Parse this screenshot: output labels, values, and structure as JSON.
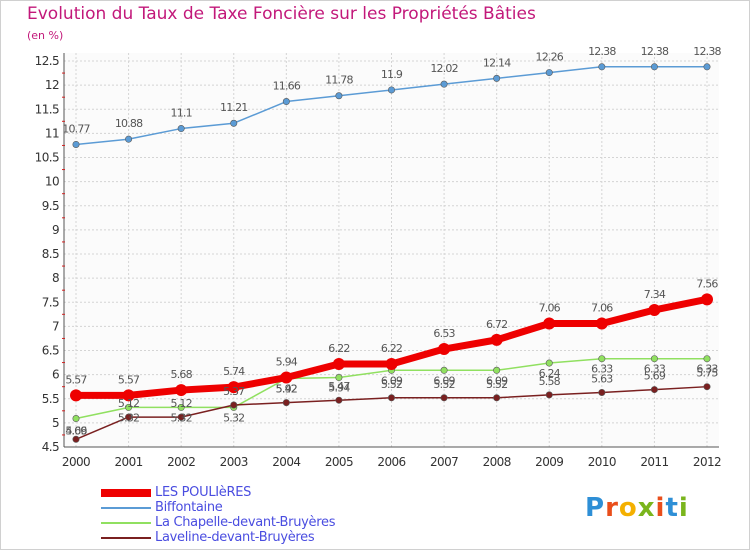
{
  "header": {
    "title": "Evolution du Taux de Taxe Foncière sur les Propriétés Bâties",
    "unit": "(en %)"
  },
  "logo": {
    "text": "Proxiti",
    "colors": [
      "#2e8fd6",
      "#e94e1b",
      "#f4b000",
      "#7ab51d",
      "#e94e1b",
      "#2e8fd6",
      "#7ab51d"
    ]
  },
  "chart_data": {
    "type": "line",
    "x": [
      "2000",
      "2001",
      "2002",
      "2003",
      "2004",
      "2005",
      "2006",
      "2007",
      "2008",
      "2009",
      "2010",
      "2011",
      "2012"
    ],
    "y_ticks": [
      "4.5",
      "5",
      "5.5",
      "6",
      "6.5",
      "7",
      "7.5",
      "8",
      "8.5",
      "9",
      "9.5",
      "10",
      "10.5",
      "11",
      "11.5",
      "12",
      "12.5"
    ],
    "ylim": [
      4.5,
      12.5
    ],
    "grid": true,
    "legend_position": "bottom-left",
    "series": [
      {
        "name": "LES POULIèRES",
        "color": "#ee0000",
        "values": [
          5.57,
          5.57,
          5.68,
          5.74,
          5.94,
          6.22,
          6.22,
          6.53,
          6.72,
          7.06,
          7.06,
          7.34,
          7.56
        ],
        "labels": [
          "5.57",
          "5.57",
          "5.68",
          "5.74",
          "5.94",
          "6.22",
          "6.22",
          "6.53",
          "6.72",
          "7.06",
          "7.06",
          "7.34",
          "7.56"
        ]
      },
      {
        "name": "Biffontaine",
        "color": "#5b9bd5",
        "values": [
          10.77,
          10.88,
          11.1,
          11.21,
          11.66,
          11.78,
          11.9,
          12.02,
          12.14,
          12.26,
          12.38,
          12.38,
          12.38
        ],
        "labels": [
          "10.77",
          "10.88",
          "11.1",
          "11.21",
          "11.66",
          "11.78",
          "11.9",
          "12.02",
          "12.14",
          "12.26",
          "12.38",
          "12.38",
          "12.38"
        ]
      },
      {
        "name": "La Chapelle-devant-Bruyères",
        "color": "#90e060",
        "values": [
          5.09,
          5.32,
          5.32,
          5.32,
          5.92,
          5.94,
          6.09,
          6.09,
          6.09,
          6.24,
          6.33,
          6.33,
          6.33
        ],
        "labels": [
          "5.09",
          "5.32",
          "5.32",
          "5.32",
          "5.92",
          "5.94",
          "6.09",
          "6.09",
          "6.09",
          "6.24",
          "6.33",
          "6.33",
          "6.33"
        ]
      },
      {
        "name": "Laveline-devant-Bruyères",
        "color": "#7a2020",
        "values": [
          4.66,
          5.12,
          5.12,
          5.37,
          5.42,
          5.47,
          5.52,
          5.52,
          5.52,
          5.58,
          5.63,
          5.69,
          5.75
        ],
        "labels": [
          "4.66",
          "5.12",
          "5.12",
          "5.37",
          "5.42",
          "5.47",
          "5.52",
          "5.52",
          "5.52",
          "5.58",
          "5.63",
          "5.69",
          "5.75"
        ]
      }
    ]
  }
}
